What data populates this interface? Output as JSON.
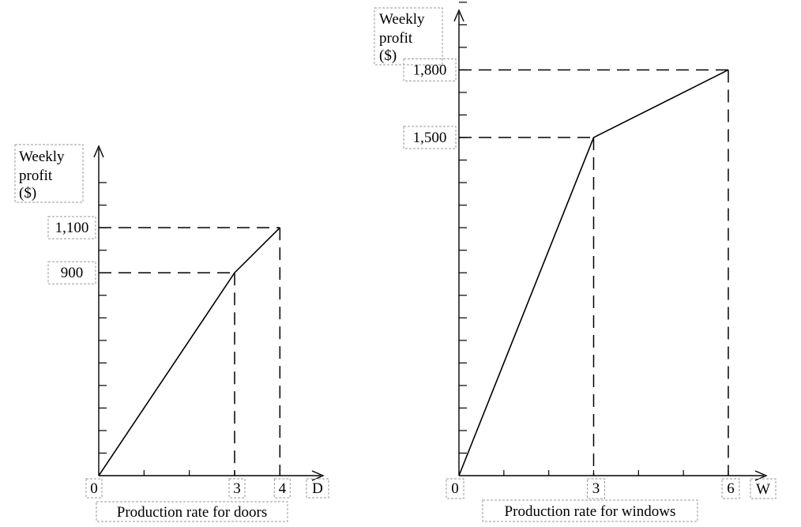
{
  "chart_data": [
    {
      "type": "line",
      "ylabel_lines": [
        "Weekly",
        "profit",
        "($)"
      ],
      "xlabel": "Production rate for doors",
      "x_axis_name": "D",
      "x": [
        0,
        3,
        4
      ],
      "y": [
        0,
        900,
        1100
      ],
      "xticks": [
        "0",
        "3",
        "4"
      ],
      "yticks": [
        "900",
        "1,100"
      ],
      "xlim": [
        0,
        4.5
      ],
      "ylim": [
        0,
        1400
      ],
      "grid": false
    },
    {
      "type": "line",
      "ylabel_lines": [
        "Weekly",
        "profit",
        "($)"
      ],
      "xlabel": "Production rate for windows",
      "x_axis_name": "W",
      "x": [
        0,
        3,
        6
      ],
      "y": [
        0,
        1500,
        1800
      ],
      "xticks": [
        "0",
        "3",
        "6"
      ],
      "yticks": [
        "1,500",
        "1,800"
      ],
      "xlim": [
        0,
        6.6
      ],
      "ylim": [
        0,
        2200
      ],
      "grid": false
    }
  ]
}
